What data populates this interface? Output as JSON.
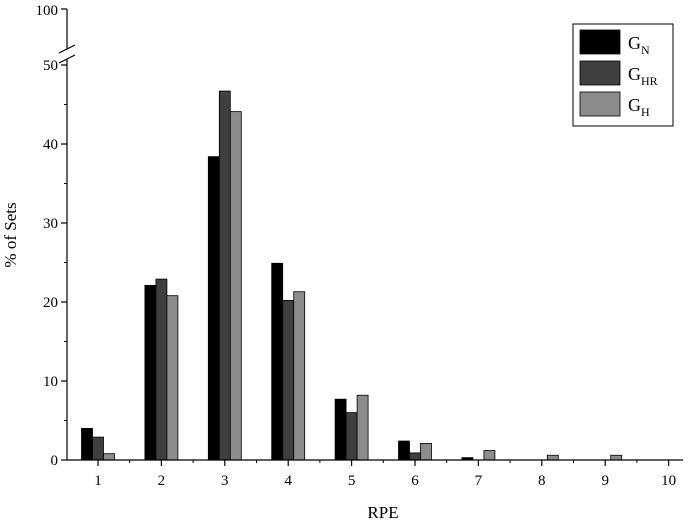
{
  "chart_data": {
    "type": "bar",
    "xlabel": "RPE",
    "ylabel": "% of Sets",
    "categories": [
      "1",
      "2",
      "3",
      "4",
      "5",
      "6",
      "7",
      "8",
      "9",
      "10"
    ],
    "series": [
      {
        "base": "G",
        "sub": "N",
        "color": "#000000",
        "values": [
          4.0,
          22.1,
          38.4,
          24.9,
          7.7,
          2.4,
          0.3,
          0,
          0,
          0
        ]
      },
      {
        "base": "G",
        "sub": "HR",
        "color": "#3f3f3f",
        "values": [
          2.9,
          22.9,
          46.7,
          20.2,
          6.0,
          0.9,
          0,
          0,
          0,
          0
        ]
      },
      {
        "base": "G",
        "sub": "H",
        "color": "#8c8c8c",
        "values": [
          0.8,
          20.8,
          44.1,
          21.3,
          8.2,
          2.1,
          1.2,
          0.6,
          0.6,
          0
        ]
      }
    ],
    "yticks_lower": [
      "0",
      "10",
      "20",
      "30",
      "40",
      "50"
    ],
    "ytick_upper": "100",
    "ylim_lower": [
      0,
      50
    ],
    "ylim_upper_top": 100,
    "axis_break": true,
    "legend_position": "top-right"
  }
}
